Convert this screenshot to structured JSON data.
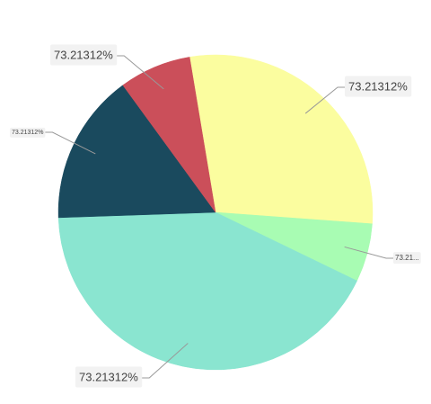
{
  "chart_data": {
    "type": "pie",
    "categories": [
      "73.21312%",
      "73.21...",
      "73.21312%",
      "73.21312%",
      "73.21312%"
    ],
    "values": [
      28.8,
      6.0,
      42.3,
      15.5,
      7.4
    ],
    "colors": [
      "#fbfd9f",
      "#a8fcb3",
      "#8ae5d0",
      "#1a4a5e",
      "#cb4f5a"
    ]
  }
}
